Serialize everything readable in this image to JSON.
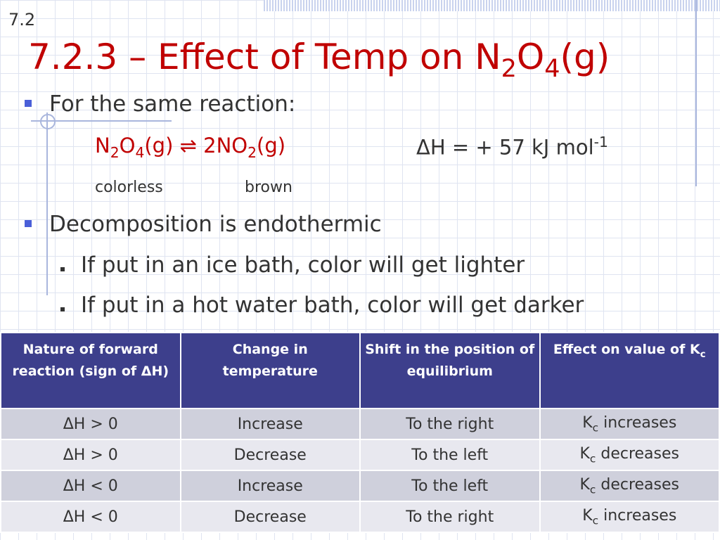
{
  "slide_number": "7.2",
  "title": [
    "7.2.3 – Effect of Temp on N",
    {
      "text": "2",
      "script": "sub"
    },
    "O",
    {
      "text": "4",
      "script": "sub"
    },
    "(g)"
  ],
  "bullets": [
    {
      "text": "For the same reaction:"
    },
    {
      "text": "Decomposition is endothermic",
      "sub_bullets": [
        "If put in an ice bath, color will get lighter",
        "If put in a hot water bath, color will get darker"
      ]
    }
  ],
  "equation": {
    "reaction": [
      "N",
      {
        "text": "2",
        "script": "sub"
      },
      "O",
      {
        "text": "4",
        "script": "sub"
      },
      "(g) ⇌ 2NO",
      {
        "text": "2",
        "script": "sub"
      },
      "(g)"
    ],
    "enthalpy": [
      "ΔH = + 57 kJ mol",
      {
        "text": "-1",
        "script": "sup"
      }
    ],
    "reactant_color": "colorless",
    "product_color": "brown"
  },
  "table": {
    "header": [
      [
        "Nature of forward reaction (sign of ΔH)"
      ],
      [
        "Change in temperature"
      ],
      [
        "Shift in the position of equilibrium"
      ],
      [
        "Effect on value of K",
        {
          "text": "c",
          "script": "sub"
        }
      ]
    ],
    "rows": [
      [
        [
          "ΔH > 0"
        ],
        [
          "Increase"
        ],
        [
          "To the right"
        ],
        [
          "K",
          {
            "text": "c",
            "script": "sub"
          },
          " increases"
        ]
      ],
      [
        [
          "ΔH > 0"
        ],
        [
          "Decrease"
        ],
        [
          "To the left"
        ],
        [
          "K",
          {
            "text": "c",
            "script": "sub"
          },
          " decreases"
        ]
      ],
      [
        [
          "ΔH < 0"
        ],
        [
          "Increase"
        ],
        [
          "To the left"
        ],
        [
          "K",
          {
            "text": "c",
            "script": "sub"
          },
          " decreases"
        ]
      ],
      [
        [
          "ΔH < 0"
        ],
        [
          "Decrease"
        ],
        [
          "To the right"
        ],
        [
          "K",
          {
            "text": "c",
            "script": "sub"
          },
          " increases"
        ]
      ]
    ]
  }
}
